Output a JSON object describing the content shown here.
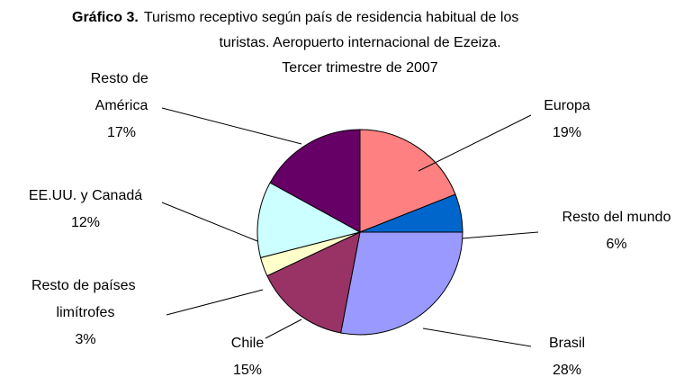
{
  "chart_data": {
    "type": "pie",
    "title": "Gráfico 3.",
    "subtitle": [
      "Turismo receptivo según país de residencia habitual de los",
      "turistas. Aeropuerto internacional de Ezeiza.",
      "Tercer trimestre de 2007"
    ],
    "categories": [
      "Europa",
      "Resto del mundo",
      "Brasil",
      "Chile",
      "Resto de países limítrofes",
      "EE.UU. y Canadá",
      "Resto de América"
    ],
    "values": [
      19,
      6,
      28,
      15,
      3,
      12,
      17
    ],
    "value_labels": [
      "19%",
      "6%",
      "28%",
      "15%",
      "3%",
      "12%",
      "17%"
    ],
    "colors": [
      "#FF8080",
      "#0066CC",
      "#9999FF",
      "#993366",
      "#FFFFCC",
      "#CCFFFF",
      "#660066"
    ]
  }
}
